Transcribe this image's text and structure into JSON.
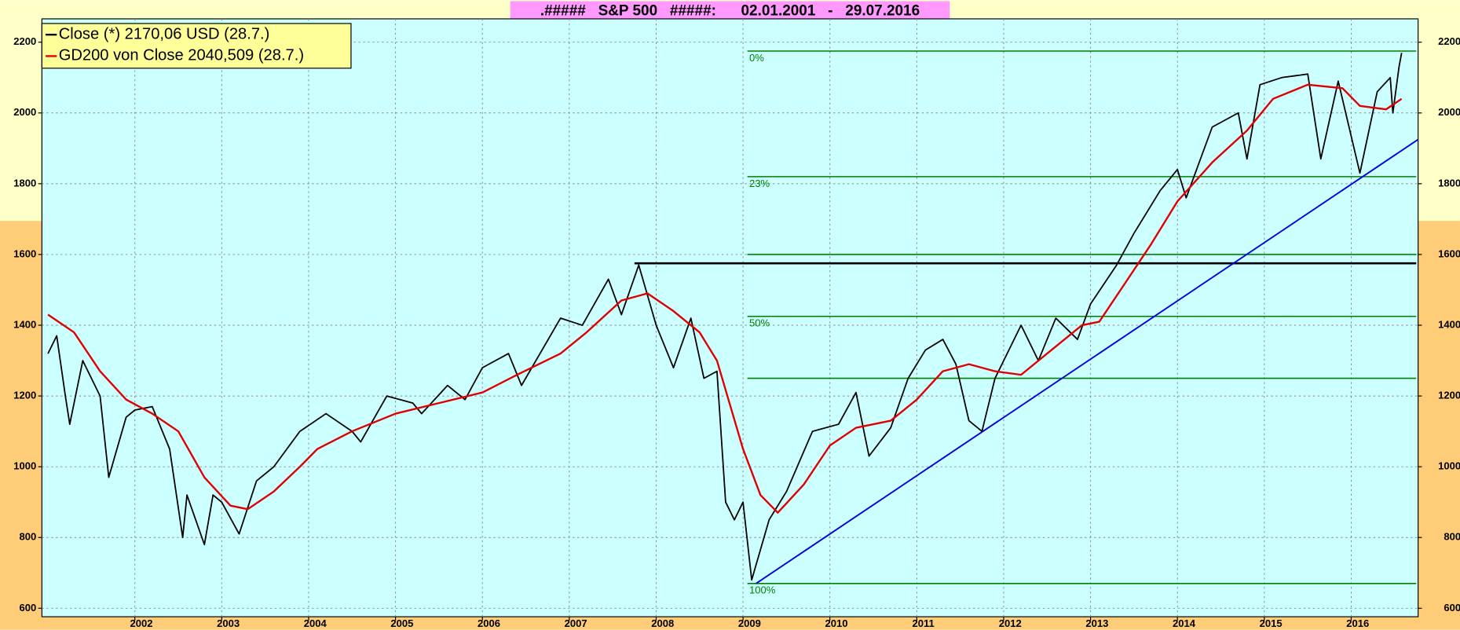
{
  "chart_data": {
    "type": "line",
    "title": ".#####   S&P 500   #####:      02.01.2001   -   29.07.2016",
    "legend": [
      "Close (*) 2170,06 USD (28.7.)",
      "GD200 von Close 2040,509 (28.7.)"
    ],
    "xlim": [
      2000.93,
      2016.77
    ],
    "xticks": [
      2002,
      2003,
      2004,
      2005,
      2006,
      2007,
      2008,
      2009,
      2010,
      2011,
      2012,
      2013,
      2014,
      2015,
      2016
    ],
    "ylim": [
      576,
      2266
    ],
    "yticks": [
      600,
      800,
      1000,
      1200,
      1400,
      1600,
      1800,
      2000,
      2200
    ],
    "grid": true,
    "series": [
      {
        "name": "Close",
        "color": "#000000",
        "x": [
          2001.0,
          2001.1,
          2001.2,
          2001.25,
          2001.4,
          2001.6,
          2001.7,
          2001.9,
          2002.0,
          2002.2,
          2002.4,
          2002.55,
          2002.6,
          2002.8,
          2002.9,
          2003.0,
          2003.2,
          2003.4,
          2003.6,
          2003.9,
          2004.2,
          2004.5,
          2004.6,
          2004.9,
          2005.2,
          2005.3,
          2005.6,
          2005.8,
          2006.0,
          2006.3,
          2006.45,
          2006.9,
          2007.15,
          2007.45,
          2007.6,
          2007.8,
          2008.0,
          2008.2,
          2008.4,
          2008.55,
          2008.7,
          2008.8,
          2008.9,
          2009.0,
          2009.1,
          2009.3,
          2009.5,
          2009.8,
          2010.1,
          2010.3,
          2010.45,
          2010.7,
          2010.9,
          2011.1,
          2011.3,
          2011.45,
          2011.6,
          2011.75,
          2011.9,
          2012.2,
          2012.4,
          2012.6,
          2012.85,
          2013.0,
          2013.3,
          2013.5,
          2013.8,
          2014.0,
          2014.1,
          2014.4,
          2014.7,
          2014.8,
          2014.95,
          2015.2,
          2015.5,
          2015.65,
          2015.85,
          2016.1,
          2016.3,
          2016.45,
          2016.48,
          2016.55,
          2016.58
        ],
        "values": [
          1320,
          1370,
          1200,
          1120,
          1300,
          1200,
          970,
          1140,
          1160,
          1170,
          1050,
          800,
          920,
          780,
          920,
          900,
          810,
          960,
          1000,
          1100,
          1150,
          1100,
          1070,
          1200,
          1180,
          1150,
          1230,
          1190,
          1280,
          1320,
          1230,
          1420,
          1400,
          1530,
          1430,
          1570,
          1400,
          1280,
          1420,
          1250,
          1270,
          900,
          850,
          900,
          680,
          850,
          930,
          1100,
          1120,
          1210,
          1030,
          1110,
          1250,
          1330,
          1360,
          1290,
          1130,
          1100,
          1250,
          1400,
          1300,
          1420,
          1360,
          1460,
          1570,
          1660,
          1780,
          1840,
          1760,
          1960,
          2000,
          1870,
          2080,
          2100,
          2110,
          1870,
          2090,
          1830,
          2060,
          2100,
          2000,
          2130,
          2170
        ]
      },
      {
        "name": "GD200",
        "color": "#e00000",
        "x": [
          2001.0,
          2001.3,
          2001.6,
          2001.9,
          2002.2,
          2002.5,
          2002.8,
          2003.1,
          2003.3,
          2003.6,
          2003.9,
          2004.1,
          2004.5,
          2005.0,
          2005.5,
          2006.0,
          2006.4,
          2006.9,
          2007.2,
          2007.6,
          2007.9,
          2008.2,
          2008.5,
          2008.7,
          2009.0,
          2009.2,
          2009.4,
          2009.7,
          2010.0,
          2010.3,
          2010.7,
          2011.0,
          2011.3,
          2011.6,
          2011.9,
          2012.2,
          2012.5,
          2012.9,
          2013.1,
          2013.4,
          2013.7,
          2014.0,
          2014.4,
          2014.8,
          2015.1,
          2015.5,
          2015.9,
          2016.1,
          2016.4,
          2016.58
        ],
        "values": [
          1430,
          1380,
          1270,
          1190,
          1150,
          1100,
          970,
          890,
          880,
          930,
          1000,
          1050,
          1100,
          1150,
          1180,
          1210,
          1260,
          1320,
          1380,
          1470,
          1490,
          1440,
          1380,
          1300,
          1050,
          920,
          870,
          950,
          1060,
          1110,
          1130,
          1190,
          1270,
          1290,
          1270,
          1260,
          1320,
          1400,
          1410,
          1520,
          1630,
          1750,
          1860,
          1950,
          2040,
          2080,
          2070,
          2020,
          2010,
          2040
        ]
      }
    ],
    "fib_lines": [
      {
        "value": 2175,
        "x0": 2009.05,
        "label": "0%"
      },
      {
        "value": 1820,
        "x0": 2009.05,
        "label": "23%"
      },
      {
        "value": 1600,
        "x0": 2009.05
      },
      {
        "value": 1425,
        "x0": 2009.05,
        "label": "50%"
      },
      {
        "value": 1250,
        "x0": 2009.05
      },
      {
        "value": 670,
        "x0": 2009.05,
        "label": "100%"
      }
    ],
    "fib_color": "#008000",
    "resistance": {
      "value": 1575,
      "x0": 2007.75,
      "color": "#000000"
    },
    "trend": {
      "x": [
        2009.15,
        2016.77
      ],
      "y": [
        670,
        1925
      ],
      "color": "#0000e0"
    }
  }
}
